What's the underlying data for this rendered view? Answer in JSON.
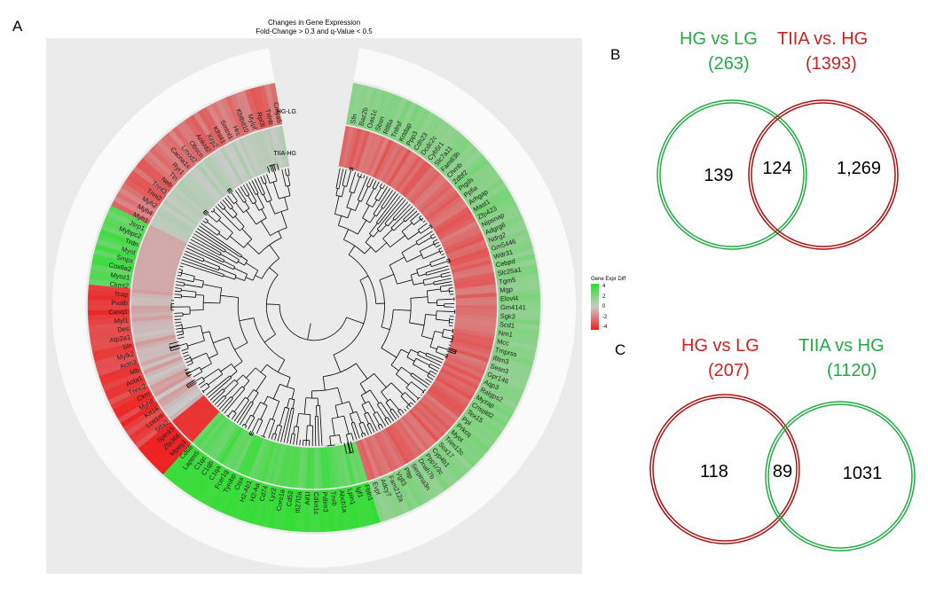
{
  "panel_a": {
    "letter": "A",
    "title": "Changes in Gene Expression",
    "subtitle": "Fold-Change > 0.3 and q-Value < 0.5",
    "ring_labels": [
      "HG-LG",
      "TIIA-HG"
    ],
    "legend": {
      "title": "Gene Expr Diff",
      "ticks": [
        "4",
        "2",
        "0",
        "-2",
        "-4"
      ],
      "colors": {
        "high": "#33dd33",
        "mid": "#c9c9c9",
        "low": "#ee2222"
      }
    },
    "genes_right": [
      "Sfn",
      "Baz2b",
      "Oas1c",
      "Sbsn",
      "Rtl8a",
      "Tnfrsf",
      "Krtdap",
      "Ppp3",
      "Cdh23",
      "Dcdc2c",
      "Cyb5r1",
      "Slc7a11",
      "Fam83h",
      "Chrnb",
      "Zdbf2",
      "Ptgds",
      "Ppfia",
      "Arhgap",
      "Mast1",
      "Zfp423",
      "Nipsnap",
      "Adgrg6",
      "Ndrg2",
      "Gm5446",
      "Wdr31",
      "Cebpd",
      "Slc25a1",
      "Tgm5",
      "Mgp",
      "Elovl4",
      "Gm4141",
      "Sgk3",
      "Scd1",
      "Nrn1",
      "Mcc",
      "Tmprss",
      "Ifitm3",
      "Sesn3",
      "Gpr146",
      "Aqp3",
      "Ralgps2",
      "Myzap",
      "Crispld2",
      "Tex15",
      "Ppl",
      "Prkcq",
      "Myot",
      "Trim12c",
      "Sox17",
      "Cyp4b1",
      "Ppp1r3c",
      "Dnah7b",
      "Serpina3n",
      "Pltp",
      "Vgll3",
      "Fam212a",
      "Adcy7",
      "Evpl",
      "Fbln1",
      "Igf1",
      "Lpin1",
      "Abcb1a",
      "Tnxb",
      "Pdlim3",
      "Cdkn1c",
      "Aif1l"
    ],
    "genes_left": [
      "Zfp366",
      "Spink5",
      "Stfa2",
      "Lce1m",
      "Krt16",
      "Myh8",
      "Ckm",
      "Tnnc2",
      "Acta1",
      "Mb",
      "Actn3",
      "Mylk2",
      "Sln",
      "Atp2a1",
      "Des",
      "Myl1",
      "Casq1",
      "Pvalb",
      "Tcap",
      "Ckmt2",
      "Myoz1",
      "Cox6a2",
      "Smpx",
      "Myot",
      "Trdn",
      "Mybpc2",
      "Jsrp1",
      "Myh1",
      "Myh4",
      "Myh2",
      "Tnni2",
      "Tnnt3",
      "Neb",
      "Ttn",
      "Ryr1",
      "Cacna1s",
      "Lmod2",
      "Obscn",
      "Ankrd2",
      "Xirp2",
      "Klhl41",
      "Smtnl1",
      "Hrc",
      "Kbtbd10",
      "Mylpf",
      "Rpl3l",
      "Txlnb",
      "Cmya5"
    ],
    "genes_bottom": [
      "Ifi27l2a",
      "Cd52",
      "Coro1a",
      "Lyz2",
      "Cd74",
      "H2-Aa",
      "H2-Ab1",
      "Ctss",
      "Tyrobp",
      "Fcer1g",
      "C1qa",
      "C1qb",
      "C1qc",
      "Laptm5",
      "Cd68",
      "Mpeg1"
    ]
  },
  "panel_b": {
    "letter": "B",
    "left_set": {
      "name": "HG vs LG",
      "total": "(263)",
      "only": "139",
      "color": "#22aa44"
    },
    "right_set": {
      "name": "TIIA vs. HG",
      "total": "(1393)",
      "only": "1,269",
      "color": "#cc2222"
    },
    "overlap": "124"
  },
  "panel_c": {
    "letter": "C",
    "left_set": {
      "name": "HG vs LG",
      "total": "(207)",
      "only": "118",
      "color": "#cc2222"
    },
    "right_set": {
      "name": "TIIA vs HG",
      "total": "(1120)",
      "only": "1031",
      "color": "#22aa44"
    },
    "overlap": "89"
  }
}
